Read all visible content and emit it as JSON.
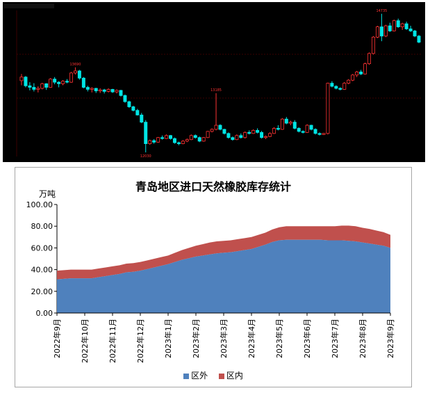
{
  "top_chart": {
    "header_text": "",
    "price_labels": {
      "high": "14735",
      "mid_high": "13690",
      "mid": "13185",
      "low": "12030"
    },
    "colors": {
      "up": "#ff3333",
      "down": "#00e5e5",
      "grid": "#3a0000",
      "bg": "#000000"
    },
    "candles": [
      [
        13430,
        13560,
        13340,
        13500
      ],
      [
        13500,
        13520,
        13300,
        13330
      ],
      [
        13330,
        13400,
        13240,
        13300
      ],
      [
        13300,
        13380,
        13220,
        13260
      ],
      [
        13260,
        13320,
        13200,
        13280
      ],
      [
        13280,
        13390,
        13260,
        13370
      ],
      [
        13370,
        13380,
        13250,
        13300
      ],
      [
        13300,
        13480,
        13290,
        13460
      ],
      [
        13460,
        13500,
        13360,
        13400
      ],
      [
        13400,
        13420,
        13300,
        13370
      ],
      [
        13370,
        13440,
        13340,
        13420
      ],
      [
        13420,
        13460,
        13380,
        13400
      ],
      [
        13400,
        13600,
        13390,
        13580
      ],
      [
        13580,
        13690,
        13550,
        13620
      ],
      [
        13620,
        13640,
        13450,
        13480
      ],
      [
        13480,
        13500,
        13280,
        13300
      ],
      [
        13300,
        13330,
        13220,
        13260
      ],
      [
        13260,
        13300,
        13200,
        13280
      ],
      [
        13280,
        13290,
        13190,
        13230
      ],
      [
        13230,
        13280,
        13190,
        13250
      ],
      [
        13250,
        13270,
        13180,
        13220
      ],
      [
        13220,
        13280,
        13200,
        13260
      ],
      [
        13260,
        13270,
        13190,
        13210
      ],
      [
        13210,
        13260,
        13180,
        13240
      ],
      [
        13240,
        13250,
        13120,
        13140
      ],
      [
        13140,
        13160,
        13000,
        13020
      ],
      [
        13020,
        13040,
        12900,
        12920
      ],
      [
        12920,
        12940,
        12830,
        12850
      ],
      [
        12850,
        12880,
        12750,
        12760
      ],
      [
        12760,
        12800,
        12600,
        12620
      ],
      [
        12620,
        12660,
        12030,
        12200
      ],
      [
        12200,
        12280,
        12180,
        12260
      ],
      [
        12260,
        12290,
        12200,
        12230
      ],
      [
        12230,
        12330,
        12220,
        12320
      ],
      [
        12320,
        12360,
        12280,
        12300
      ],
      [
        12300,
        12380,
        12290,
        12360
      ],
      [
        12360,
        12370,
        12280,
        12300
      ],
      [
        12300,
        12320,
        12200,
        12220
      ],
      [
        12220,
        12240,
        12170,
        12200
      ],
      [
        12200,
        12270,
        12190,
        12250
      ],
      [
        12250,
        12300,
        12230,
        12280
      ],
      [
        12280,
        12380,
        12270,
        12360
      ],
      [
        12360,
        12380,
        12300,
        12320
      ],
      [
        12320,
        12340,
        12230,
        12250
      ],
      [
        12250,
        12330,
        12240,
        12320
      ],
      [
        12320,
        12450,
        12310,
        12440
      ],
      [
        12440,
        12500,
        12420,
        12480
      ],
      [
        12480,
        13185,
        12460,
        12560
      ],
      [
        12560,
        12580,
        12460,
        12480
      ],
      [
        12480,
        12490,
        12380,
        12400
      ],
      [
        12400,
        12420,
        12300,
        12320
      ],
      [
        12320,
        12340,
        12260,
        12280
      ],
      [
        12280,
        12380,
        12270,
        12360
      ],
      [
        12360,
        12400,
        12300,
        12320
      ],
      [
        12320,
        12440,
        12300,
        12420
      ],
      [
        12420,
        12460,
        12380,
        12400
      ],
      [
        12400,
        12480,
        12390,
        12460
      ],
      [
        12460,
        12500,
        12400,
        12420
      ],
      [
        12420,
        12450,
        12300,
        12320
      ],
      [
        12320,
        12360,
        12290,
        12340
      ],
      [
        12340,
        12420,
        12330,
        12400
      ],
      [
        12400,
        12520,
        12390,
        12500
      ],
      [
        12500,
        12560,
        12460,
        12480
      ],
      [
        12480,
        12700,
        12470,
        12680
      ],
      [
        12680,
        12720,
        12580,
        12600
      ],
      [
        12600,
        12650,
        12560,
        12620
      ],
      [
        12620,
        12660,
        12480,
        12500
      ],
      [
        12500,
        12520,
        12420,
        12440
      ],
      [
        12440,
        12460,
        12400,
        12420
      ],
      [
        12420,
        12580,
        12410,
        12560
      ],
      [
        12560,
        12570,
        12460,
        12480
      ],
      [
        12480,
        12500,
        12380,
        12400
      ],
      [
        12400,
        12420,
        12360,
        12380
      ],
      [
        12380,
        12410,
        12370,
        12400
      ],
      [
        12400,
        13390,
        12380,
        13380
      ],
      [
        13380,
        13420,
        13300,
        13320
      ],
      [
        13320,
        13340,
        13260,
        13280
      ],
      [
        13280,
        13300,
        13240,
        13260
      ],
      [
        13260,
        13400,
        13250,
        13380
      ],
      [
        13380,
        13460,
        13360,
        13440
      ],
      [
        13440,
        13560,
        13420,
        13540
      ],
      [
        13540,
        13620,
        13500,
        13600
      ],
      [
        13600,
        13640,
        13540,
        13560
      ],
      [
        13560,
        13780,
        13550,
        13760
      ],
      [
        13760,
        13980,
        13740,
        13960
      ],
      [
        13960,
        14300,
        13940,
        14280
      ],
      [
        14280,
        14500,
        14260,
        14480
      ],
      [
        14480,
        14735,
        14200,
        14300
      ],
      [
        14300,
        14520,
        14280,
        14500
      ],
      [
        14500,
        14560,
        14380,
        14400
      ],
      [
        14400,
        14620,
        14390,
        14600
      ],
      [
        14600,
        14640,
        14460,
        14480
      ],
      [
        14480,
        14560,
        14420,
        14540
      ],
      [
        14540,
        14580,
        14420,
        14440
      ],
      [
        14440,
        14500,
        14380,
        14400
      ],
      [
        14400,
        14420,
        14280,
        14300
      ],
      [
        14300,
        14320,
        14160,
        14180
      ]
    ]
  },
  "chart_data": {
    "type": "area",
    "title": "青岛地区进口天然橡胶库存统计",
    "ylabel": "万吨",
    "ylim": [
      0,
      100
    ],
    "yticks": [
      "100.00",
      "80.00",
      "60.00",
      "40.00",
      "20.00",
      "0.00"
    ],
    "x_ticks": [
      "2022年9月",
      "2022年10月",
      "2022年11月",
      "2022年12月",
      "2023年1月",
      "2023年2月",
      "2023年3月",
      "2023年4月",
      "2023年5月",
      "2023年6月",
      "2023年7月",
      "2023年8月",
      "2023年9月"
    ],
    "x": [
      0,
      0.25,
      0.5,
      0.75,
      1,
      1.25,
      1.5,
      1.75,
      2,
      2.25,
      2.5,
      2.75,
      3,
      3.25,
      3.5,
      3.75,
      4,
      4.25,
      4.5,
      4.75,
      5,
      5.25,
      5.5,
      5.75,
      6,
      6.25,
      6.5,
      6.75,
      7,
      7.25,
      7.5,
      7.75,
      8,
      8.25,
      8.5,
      8.75,
      9,
      9.25,
      9.5,
      9.75,
      10,
      10.25,
      10.5,
      10.75,
      11,
      11.25,
      11.5,
      11.75,
      12
    ],
    "series": [
      {
        "name": "区外",
        "color": "#4f81bd",
        "values": [
          31,
          31.5,
          32,
          32,
          32,
          32,
          33,
          34,
          35,
          36,
          37.5,
          38,
          39,
          40.5,
          42,
          43.5,
          45,
          47,
          49,
          50.5,
          52,
          53,
          54,
          55,
          55.5,
          56,
          57,
          58,
          59,
          61,
          63,
          65.5,
          67,
          67.5,
          67.5,
          67.5,
          67.5,
          67.5,
          67.5,
          67,
          67,
          67,
          66.5,
          66,
          65,
          64,
          63,
          62,
          60
        ]
      },
      {
        "name": "区内",
        "color": "#c0504d",
        "values": [
          8,
          8,
          8,
          8,
          8,
          8,
          8,
          8,
          8,
          8,
          8,
          8,
          8,
          8,
          8,
          8,
          8,
          8.5,
          9,
          9.5,
          10,
          10.5,
          11,
          11,
          11,
          11,
          11,
          11,
          11,
          11,
          11,
          11.5,
          12,
          12.5,
          12.5,
          12.5,
          12.5,
          12.5,
          12.5,
          13,
          13,
          13.5,
          14,
          14,
          13.5,
          13.5,
          13,
          12.5,
          12
        ]
      }
    ],
    "legend": [
      "区外",
      "区内"
    ],
    "legend_position": "bottom"
  }
}
